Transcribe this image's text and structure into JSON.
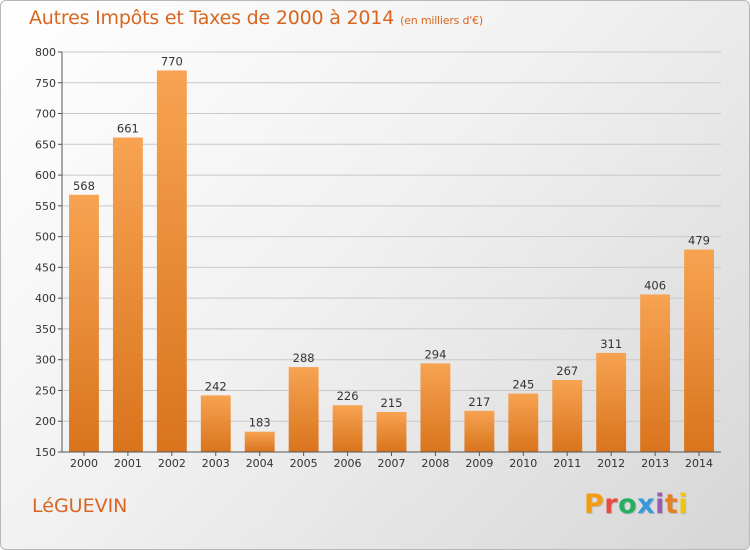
{
  "header": {
    "title": "Autres Impôts et Taxes de 2000 à 2014",
    "unit": "(en milliers d'€)"
  },
  "footer": {
    "town": "LéGUEVIN",
    "logo_text": "Proxiti"
  },
  "colors": {
    "accent": "#d9651e",
    "bar_top": "#f7a352",
    "bar_bottom": "#d9741c",
    "logo": [
      "#f39c12",
      "#e74c3c",
      "#27ae60",
      "#3498db",
      "#9b59b6",
      "#e67e22",
      "#f1c40f"
    ]
  },
  "chart_data": {
    "type": "bar",
    "title": "Autres Impôts et Taxes de 2000 à 2014",
    "subtitle": "(en milliers d'€)",
    "categories": [
      "2000",
      "2001",
      "2002",
      "2003",
      "2004",
      "2005",
      "2006",
      "2007",
      "2008",
      "2009",
      "2010",
      "2011",
      "2012",
      "2013",
      "2014"
    ],
    "values": [
      568,
      661,
      770,
      242,
      183,
      288,
      226,
      215,
      294,
      217,
      245,
      267,
      311,
      406,
      479
    ],
    "ylim": [
      150,
      800
    ],
    "yticks": [
      150,
      200,
      250,
      300,
      350,
      400,
      450,
      500,
      550,
      600,
      650,
      700,
      750,
      800
    ],
    "grid": true
  }
}
